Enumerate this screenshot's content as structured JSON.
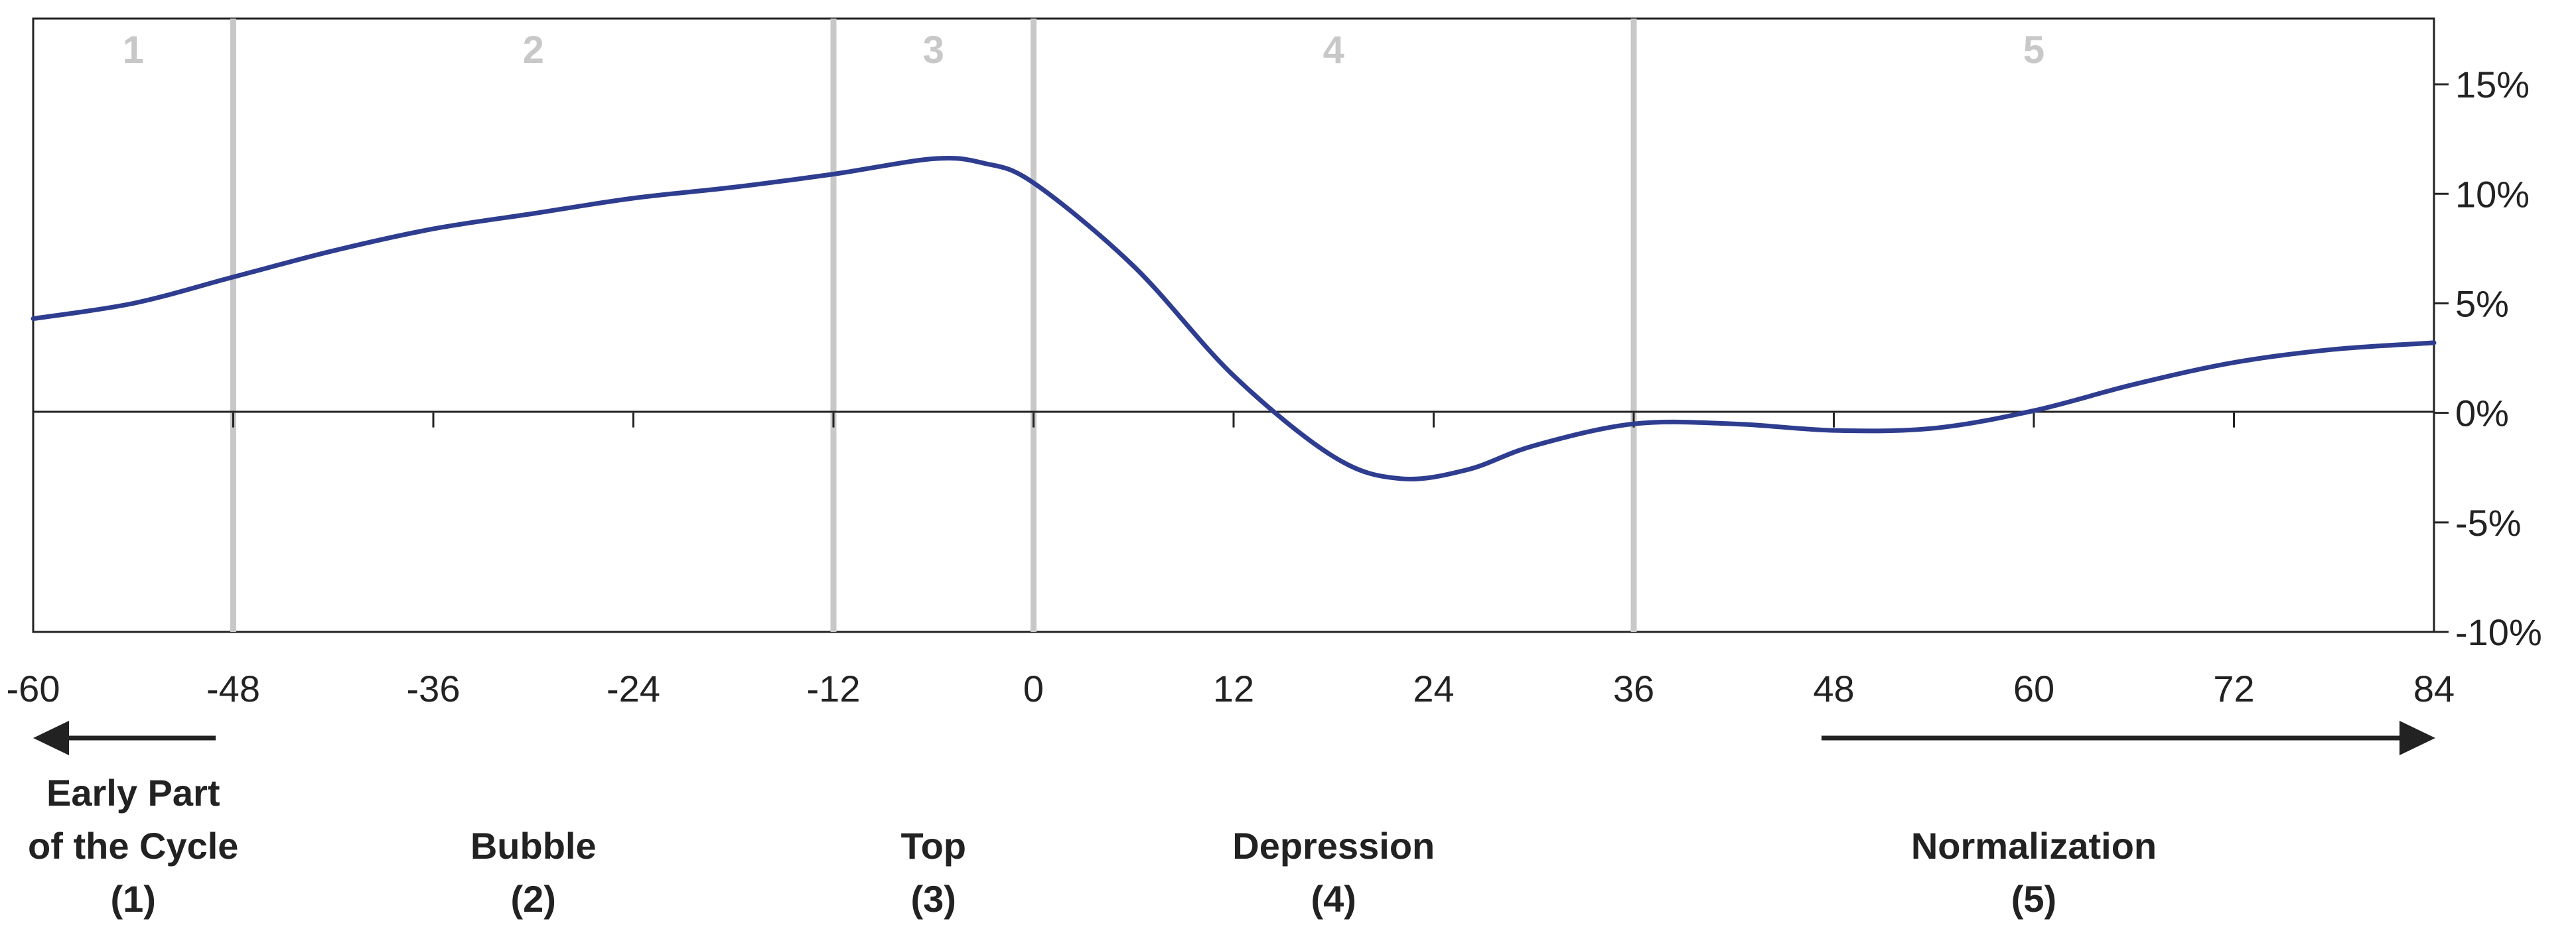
{
  "chart_data": {
    "type": "line",
    "title": "",
    "xlabel": "",
    "ylabel": "",
    "xlim": [
      -60,
      84
    ],
    "ylim": [
      -10,
      15
    ],
    "x_ticks": [
      "-60",
      "-48",
      "-36",
      "-24",
      "-12",
      "0",
      "12",
      "24",
      "36",
      "48",
      "60",
      "72",
      "84"
    ],
    "y_ticks": [
      {
        "value": 15,
        "label": "15%"
      },
      {
        "value": 10,
        "label": "10%"
      },
      {
        "value": 5,
        "label": "5%"
      },
      {
        "value": 0,
        "label": "0%"
      },
      {
        "value": -5,
        "label": "-5%"
      },
      {
        "value": -10,
        "label": "-10%"
      }
    ],
    "series": [
      {
        "name": "",
        "color": "#2e3d8f",
        "x": [
          -60,
          -54,
          -48,
          -42,
          -36,
          -30,
          -24,
          -18,
          -12,
          -6,
          -3,
          0,
          6,
          12,
          18,
          22,
          26,
          30,
          36,
          42,
          48,
          54,
          60,
          66,
          72,
          78,
          84
        ],
        "y": [
          4.3,
          5.0,
          6.2,
          7.4,
          8.4,
          9.1,
          9.8,
          10.3,
          10.9,
          11.6,
          11.4,
          10.5,
          6.7,
          1.7,
          -2.0,
          -3.0,
          -2.6,
          -1.5,
          -0.5,
          -0.5,
          -0.8,
          -0.7,
          0.1,
          1.3,
          2.3,
          2.9,
          3.2
        ]
      }
    ],
    "phases": [
      {
        "number": "1",
        "start": -60,
        "end": -48,
        "title_lines": [
          "Early Part",
          "of the Cycle",
          "(1)"
        ]
      },
      {
        "number": "2",
        "start": -48,
        "end": -12,
        "title_lines": [
          "Bubble",
          "(2)"
        ]
      },
      {
        "number": "3",
        "start": -12,
        "end": 0,
        "title_lines": [
          "Top",
          "(3)"
        ]
      },
      {
        "number": "4",
        "start": 0,
        "end": 36,
        "title_lines": [
          "Depression",
          "(4)"
        ]
      },
      {
        "number": "5",
        "start": 36,
        "end": 84,
        "title_lines": [
          "Normalization",
          "(5)"
        ]
      }
    ],
    "phase_boundaries": [
      -48,
      -12,
      0,
      36
    ],
    "grid": false,
    "legend": "none",
    "colors": {
      "line": "#2e3d8f",
      "phase_divider": "#c8c8c8",
      "phase_number": "#c8c8c8",
      "axis": "#222222",
      "arrow": "#222222"
    }
  }
}
